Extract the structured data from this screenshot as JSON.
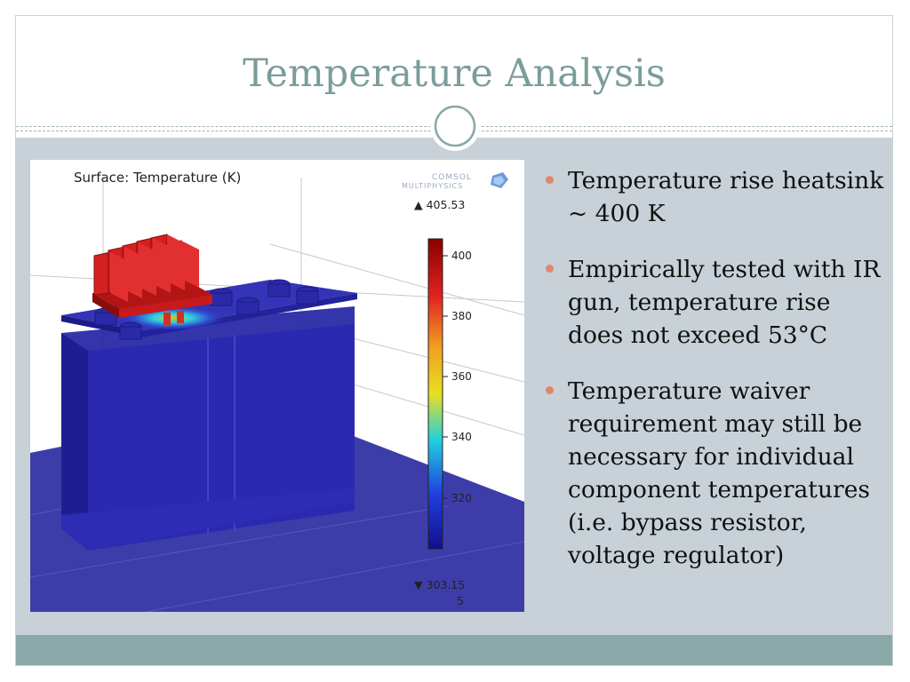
{
  "slide": {
    "title": "Temperature Analysis"
  },
  "figure": {
    "plot_label": "Surface: Temperature (K)",
    "logo_line1": "COMSOL",
    "logo_line2": "MULTIPHYSICS",
    "max_label": "▲ 405.53",
    "min_label": "▼ 303.15",
    "scale_ticks": [
      "400",
      "380",
      "360",
      "340",
      "320"
    ],
    "corner_label": "5",
    "colors": {
      "cold": "#1e1e9a",
      "hot": "#cc1b1b",
      "floor": "#3c3ca8"
    }
  },
  "bullets": [
    "Temperature rise heatsink ~ 400 K",
    "Empirically tested with IR gun, temperature rise does not exceed 53°C",
    "Temperature waiver requirement may still be necessary for individual component temperatures (i.e. bypass resistor, voltage regulator)"
  ]
}
